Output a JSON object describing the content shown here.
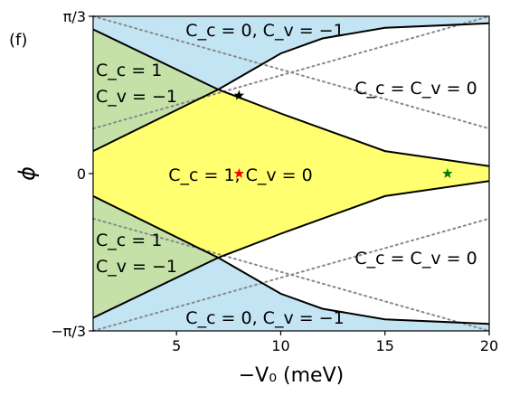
{
  "panel_label": "(f)",
  "chart_data": {
    "type": "area",
    "xlabel": "−V₀ (meV)",
    "ylabel": "ϕ",
    "xlim": [
      1,
      20
    ],
    "ylim_rad": [
      -1.0472,
      1.0472
    ],
    "x_ticks": [
      {
        "value": 5,
        "label": "5"
      },
      {
        "value": 10,
        "label": "10"
      },
      {
        "value": 15,
        "label": "15"
      },
      {
        "value": 20,
        "label": "20"
      }
    ],
    "y_ticks": [
      {
        "value": 1.0472,
        "label": "π/3"
      },
      {
        "value": 0,
        "label": "0"
      },
      {
        "value": -1.0472,
        "label": "−π/3"
      }
    ],
    "colors": {
      "blue": "#c3e4f3",
      "green": "#c6e1a8",
      "yellow": "#ffff70",
      "white": "#ffffff",
      "boundary": "#000000",
      "dotted": "#888888",
      "star_black": "#000000",
      "star_red": "#ff0000",
      "star_green": "#008000"
    },
    "boundaries": {
      "left_upper": [
        [
          1,
          0.15
        ],
        [
          7,
          0.56
        ]
      ],
      "left_lower": [
        [
          1,
          -0.15
        ],
        [
          7,
          -0.56
        ]
      ],
      "green_upper": [
        [
          1,
          0.96
        ],
        [
          7,
          0.56
        ]
      ],
      "green_lower": [
        [
          1,
          -0.96
        ],
        [
          7,
          -0.56
        ]
      ],
      "yellow_upper": [
        [
          7,
          0.56
        ],
        [
          10,
          0.4
        ],
        [
          12,
          0.3
        ],
        [
          15,
          0.15
        ],
        [
          20,
          0.05
        ]
      ],
      "yellow_lower": [
        [
          7,
          -0.56
        ],
        [
          10,
          -0.4
        ],
        [
          12,
          -0.3
        ],
        [
          15,
          -0.15
        ],
        [
          20,
          -0.05
        ]
      ],
      "blue_upper": [
        [
          7,
          0.56
        ],
        [
          10,
          0.8
        ],
        [
          12,
          0.9
        ],
        [
          15,
          0.97
        ],
        [
          20,
          1.0
        ]
      ],
      "blue_lower": [
        [
          7,
          -0.56
        ],
        [
          10,
          -0.8
        ],
        [
          12,
          -0.9
        ],
        [
          15,
          -0.97
        ],
        [
          20,
          -1.0
        ]
      ]
    },
    "dotted_lines": [
      [
        [
          1,
          1.0472
        ],
        [
          20,
          0.3
        ]
      ],
      [
        [
          1,
          0.3
        ],
        [
          20,
          1.0472
        ]
      ],
      [
        [
          1,
          -1.0472
        ],
        [
          20,
          -0.3
        ]
      ],
      [
        [
          1,
          -0.3
        ],
        [
          20,
          -1.0472
        ]
      ]
    ],
    "markers": [
      {
        "x": 8,
        "y": 0.52,
        "color": "star_black"
      },
      {
        "x": 8,
        "y": 0.0,
        "color": "star_red"
      },
      {
        "x": 18,
        "y": 0.0,
        "color": "star_green"
      }
    ],
    "regions": [
      {
        "id": "blue-top",
        "lines": [
          "C_c = 0, C_v = −1"
        ]
      },
      {
        "id": "blue-bottom",
        "lines": [
          "C_c = 0, C_v = −1"
        ]
      },
      {
        "id": "green-top",
        "lines": [
          "C_c = 1",
          "C_v = −1"
        ]
      },
      {
        "id": "green-bottom",
        "lines": [
          "C_c = 1",
          "C_v = −1"
        ]
      },
      {
        "id": "yellow",
        "lines": [
          "C_c = 1, C_v = 0"
        ]
      },
      {
        "id": "white-top",
        "lines": [
          "C_c = C_v = 0"
        ]
      },
      {
        "id": "white-bottom",
        "lines": [
          "C_c = C_v = 0"
        ]
      }
    ]
  }
}
